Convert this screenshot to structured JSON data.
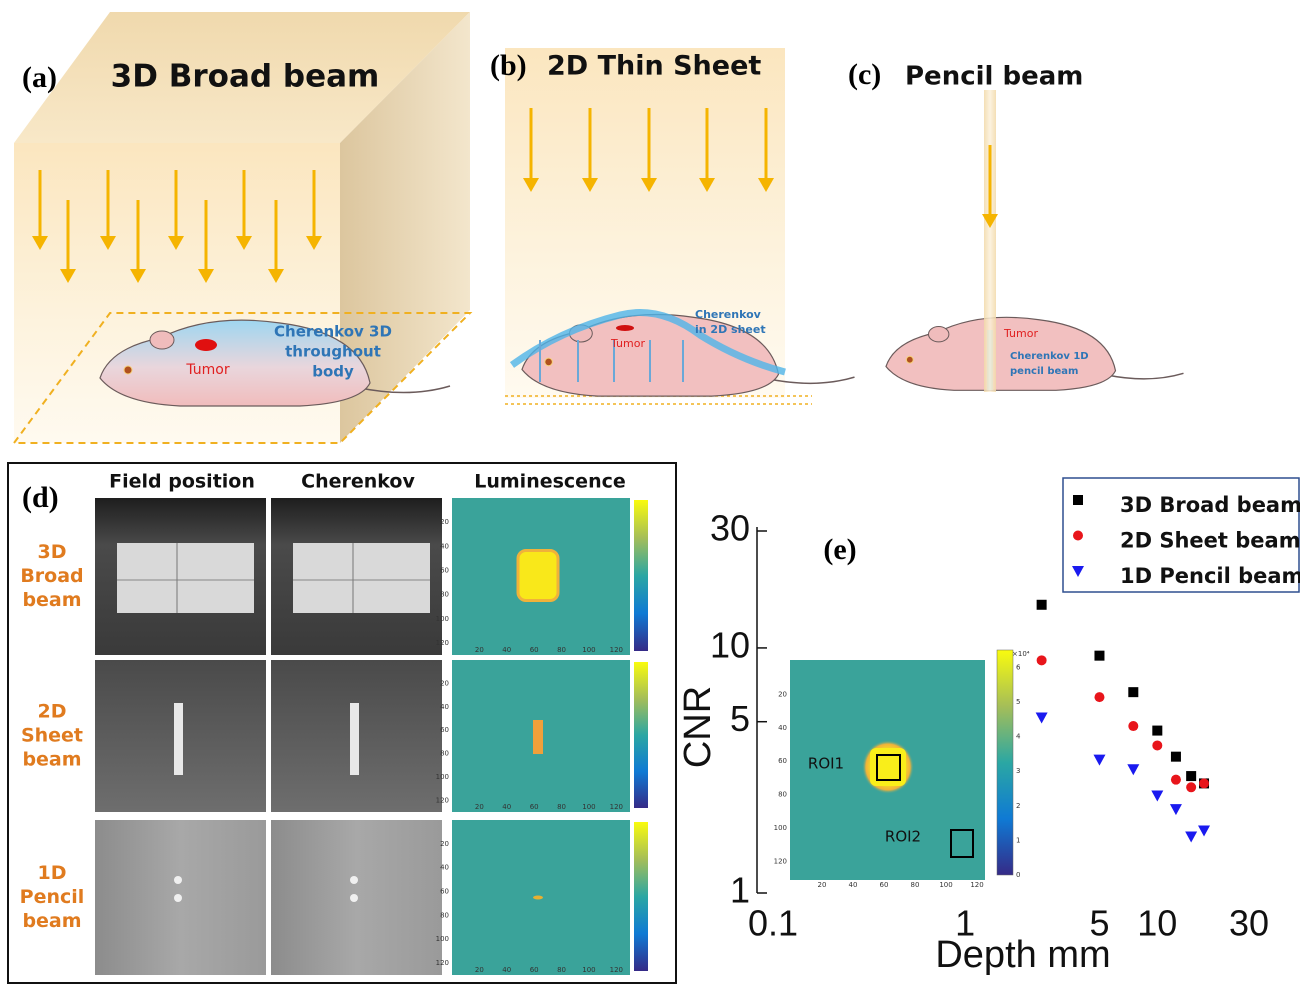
{
  "panel_a": {
    "label": "(a)",
    "title": "3D Broad beam",
    "annotation": [
      "Cherenkov 3D",
      "throughout",
      "body"
    ],
    "tumor": "Tumor"
  },
  "panel_b": {
    "label": "(b)",
    "title": "2D Thin Sheet",
    "annotation": [
      "Cherenkov",
      "in 2D sheet"
    ],
    "tumor": "Tumor"
  },
  "panel_c": {
    "label": "(c)",
    "title": "Pencil beam",
    "annotation": [
      "Cherenkov 1D",
      "pencil beam"
    ],
    "tumor": "Tumor"
  },
  "panel_d": {
    "label": "(d)",
    "columns": [
      "Field position",
      "Cherenkov",
      "Luminescence"
    ],
    "rows": [
      [
        "3D",
        "Broad",
        "beam"
      ],
      [
        "2D",
        "Sheet",
        "beam"
      ],
      [
        "1D",
        "Pencil",
        "beam"
      ]
    ]
  },
  "inset": {
    "roi_labels": [
      "ROI1",
      "ROI2"
    ],
    "xticks": [
      20,
      40,
      60,
      80,
      100,
      120
    ],
    "yticks": [
      20,
      40,
      60,
      80,
      100,
      120
    ],
    "colorbar_ticks": [
      0,
      1,
      2,
      3,
      4,
      5,
      6
    ],
    "colorbar_unit": "×10⁴"
  },
  "chart_data": {
    "type": "scatter",
    "title": "(e)",
    "xlabel": "Depth mm",
    "ylabel": "CNR",
    "xscale": "log",
    "yscale": "log",
    "xlim": [
      0.1,
      30
    ],
    "ylim": [
      1,
      30
    ],
    "xticks": [
      0.1,
      1,
      5,
      10,
      30
    ],
    "yticks": [
      1,
      5,
      10,
      30
    ],
    "legend": "upper right",
    "x": [
      2.5,
      5,
      7.5,
      10,
      12.5,
      15,
      17.5
    ],
    "series": [
      {
        "name": "3D Broad beam",
        "color": "#000000",
        "marker": "square",
        "values": [
          15,
          9.3,
          6.6,
          4.6,
          3.6,
          3.0,
          2.8
        ]
      },
      {
        "name": "2D Sheet beam",
        "color": "#e8151b",
        "marker": "circle",
        "values": [
          8.9,
          6.3,
          4.8,
          4.0,
          2.9,
          2.7,
          2.8
        ]
      },
      {
        "name": "1D Pencil beam",
        "color": "#1a1aef",
        "marker": "triangle",
        "values": [
          5.2,
          3.5,
          3.2,
          2.5,
          2.2,
          1.7,
          1.8
        ]
      }
    ]
  }
}
